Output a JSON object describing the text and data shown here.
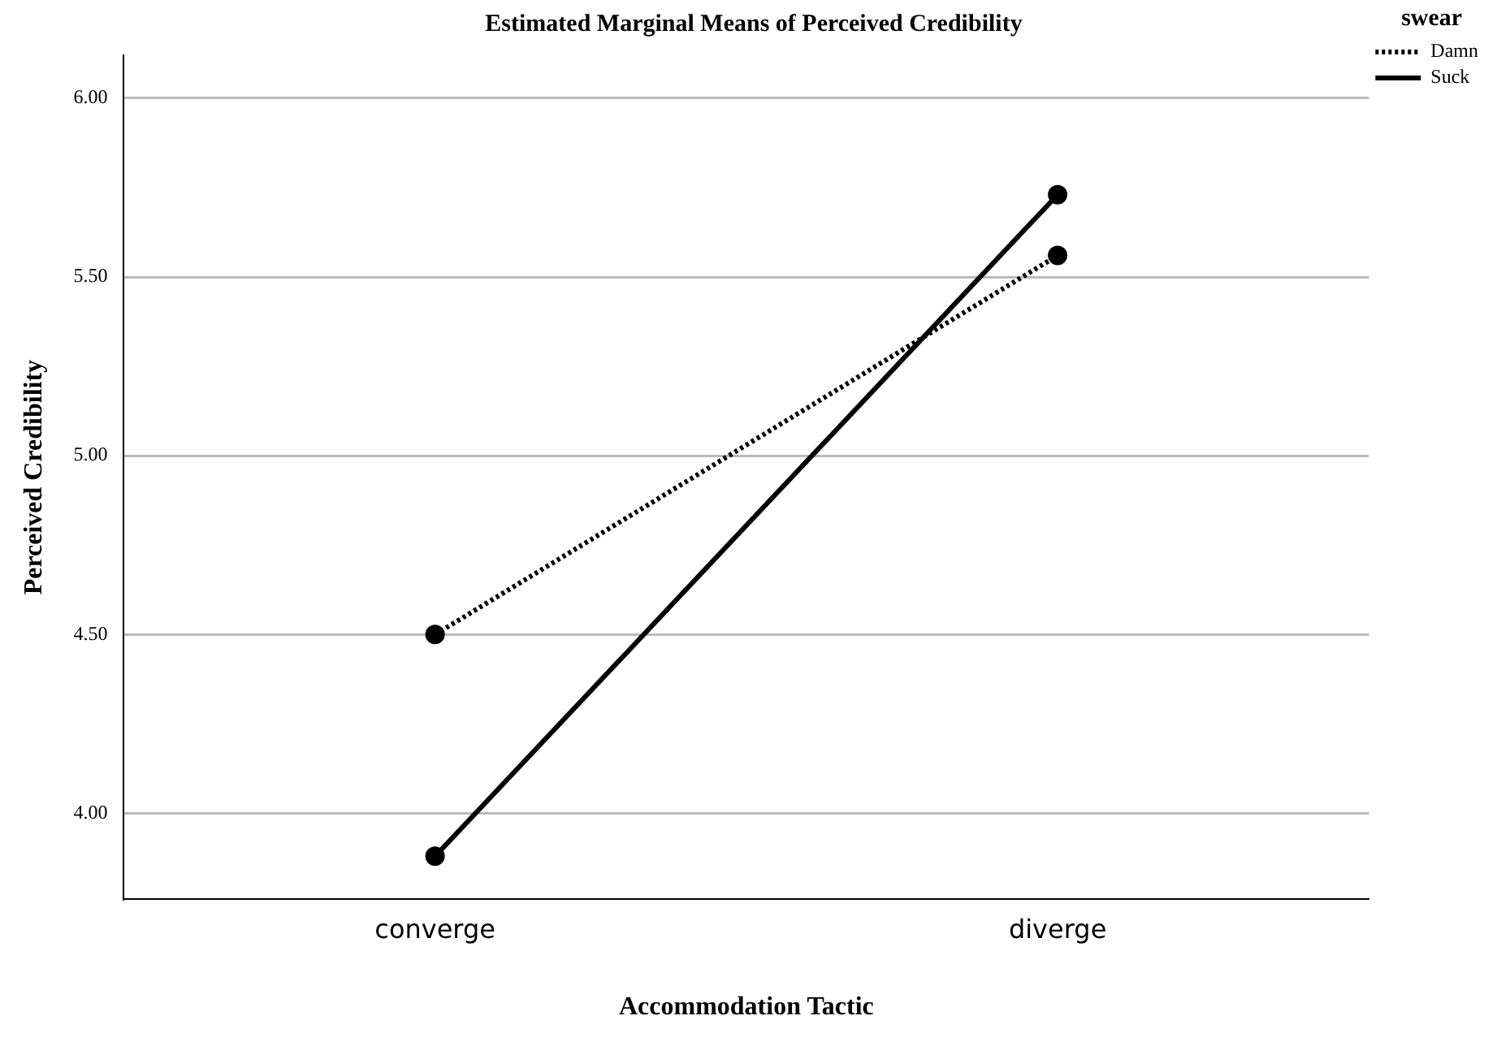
{
  "chart_data": {
    "type": "line",
    "title": "Estimated Marginal Means of Perceived Credibility",
    "xlabel": "Accommodation Tactic",
    "ylabel": "Perceived Credibility",
    "legend_title": "swear",
    "categories": [
      "converge",
      "diverge"
    ],
    "series": [
      {
        "name": "Damn",
        "color": "#000000",
        "values": [
          4.5,
          5.56
        ],
        "line_style": "dotted"
      },
      {
        "name": "Suck",
        "color": "#000000",
        "values": [
          3.88,
          5.73
        ],
        "line_style": "solid"
      }
    ],
    "ylim": [
      3.76,
      6.12
    ],
    "yticks": [
      {
        "value": 4,
        "label": "4.00"
      },
      {
        "value": 4.5,
        "label": "4.50"
      },
      {
        "value": 5,
        "label": "5.00"
      },
      {
        "value": 5.5,
        "label": "5.50"
      },
      {
        "value": 6,
        "label": "6.00"
      }
    ],
    "grid": "y",
    "legend": "top right",
    "marker": "circle"
  }
}
